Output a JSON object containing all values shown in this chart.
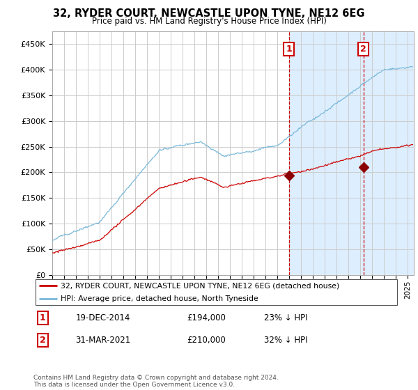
{
  "title": "32, RYDER COURT, NEWCASTLE UPON TYNE, NE12 6EG",
  "subtitle": "Price paid vs. HM Land Registry's House Price Index (HPI)",
  "ylabel_ticks": [
    "£0",
    "£50K",
    "£100K",
    "£150K",
    "£200K",
    "£250K",
    "£300K",
    "£350K",
    "£400K",
    "£450K"
  ],
  "ytick_vals": [
    0,
    50000,
    100000,
    150000,
    200000,
    250000,
    300000,
    350000,
    400000,
    450000
  ],
  "ylim": [
    0,
    475000
  ],
  "xlim_start": 1995.0,
  "xlim_end": 2025.5,
  "hpi_color": "#7ab8d9",
  "price_color": "#cc0000",
  "marker1_date": 2014.96,
  "marker1_price": 194000,
  "marker2_date": 2021.25,
  "marker2_price": 210000,
  "shade_start": 2014.96,
  "shaded_color": "#ddeeff",
  "legend_line1": "32, RYDER COURT, NEWCASTLE UPON TYNE, NE12 6EG (detached house)",
  "legend_line2": "HPI: Average price, detached house, North Tyneside",
  "table_row1": [
    "1",
    "19-DEC-2014",
    "£194,000",
    "23% ↓ HPI"
  ],
  "table_row2": [
    "2",
    "31-MAR-2021",
    "£210,000",
    "32% ↓ HPI"
  ],
  "footnote": "Contains HM Land Registry data © Crown copyright and database right 2024.\nThis data is licensed under the Open Government Licence v3.0.",
  "background_color": "#ffffff",
  "grid_color": "#cccccc"
}
